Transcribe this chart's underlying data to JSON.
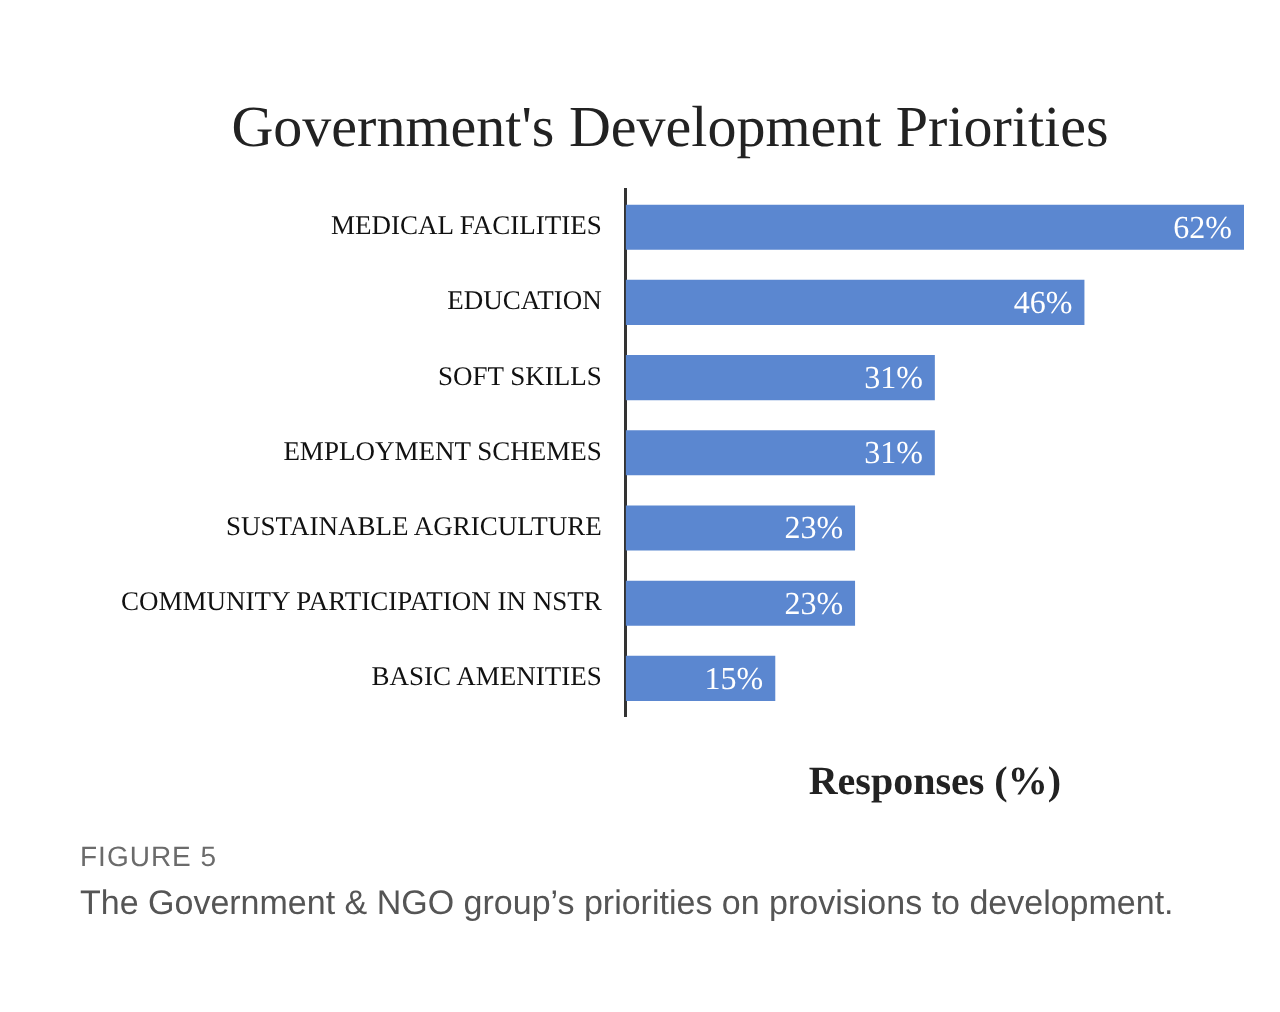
{
  "chart_data": {
    "type": "bar",
    "orientation": "horizontal",
    "title": "Government's Development Priorities",
    "xlabel": "Responses (%)",
    "categories": [
      "MEDICAL FACILITIES",
      "EDUCATION",
      "SOFT SKILLS",
      "EMPLOYMENT SCHEMES",
      "SUSTAINABLE AGRICULTURE",
      "COMMUNITY PARTICIPATION IN NSTR",
      "BASIC AMENITIES"
    ],
    "values": [
      62,
      46,
      31,
      31,
      23,
      23,
      15
    ],
    "value_labels": [
      "62%",
      "46%",
      "31%",
      "31%",
      "23%",
      "23%",
      "15%"
    ],
    "color": "#5b87d0",
    "grid": false,
    "legend": false,
    "tick_labels": "y",
    "annotations": [
      "FIGURE 5",
      "The Government & NGO group’s priorities on provisions to development."
    ]
  }
}
